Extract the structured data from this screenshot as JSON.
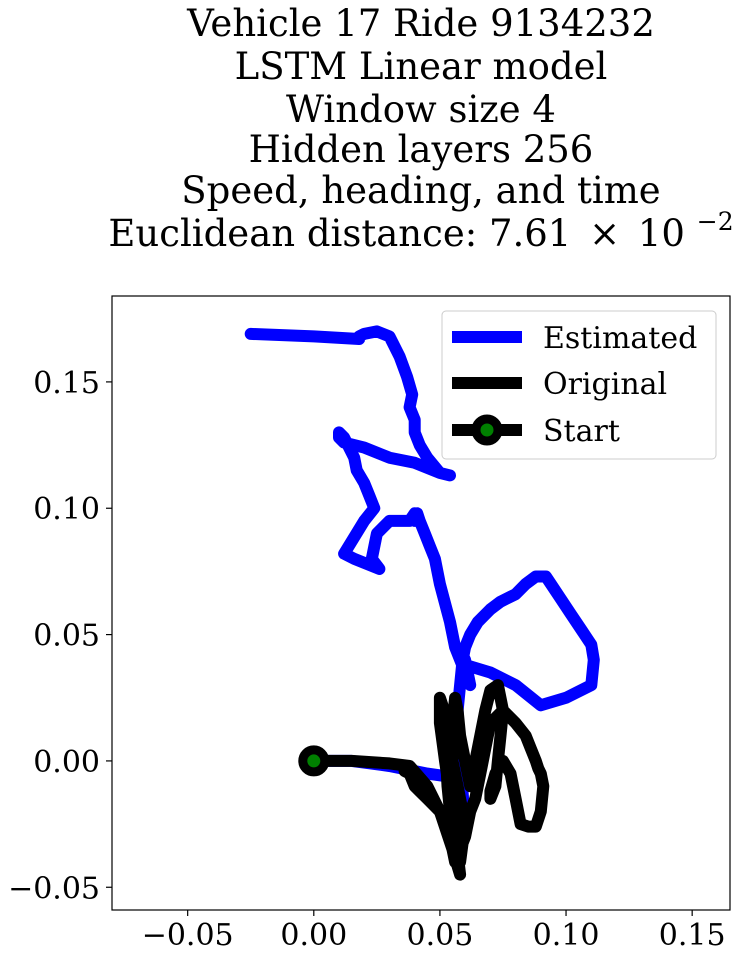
{
  "chart_data": {
    "type": "line",
    "title_lines": [
      "Vehicle 17 Ride 9134232",
      "LSTM Linear model",
      "Window size 4",
      "Hidden layers 256",
      "Speed, heading, and time"
    ],
    "title_metric_label": "Euclidean distance: 7.61",
    "title_metric_times": "×",
    "title_metric_base": "10",
    "title_metric_exponent": "−2",
    "xlabel": "",
    "ylabel": "",
    "xlim": [
      -0.08,
      0.165
    ],
    "ylim": [
      -0.059,
      0.184
    ],
    "xticks": [
      -0.05,
      0.0,
      0.05,
      0.1,
      0.15
    ],
    "xtick_labels": [
      "−0.05",
      "0.00",
      "0.05",
      "0.10",
      "0.15"
    ],
    "yticks": [
      -0.05,
      0.0,
      0.05,
      0.1,
      0.15
    ],
    "ytick_labels": [
      "−0.05",
      "0.00",
      "0.05",
      "0.10",
      "0.15"
    ],
    "grid": false,
    "legend_position": "top-right",
    "legend": [
      "Estimated",
      "Original",
      "Start"
    ],
    "series": [
      {
        "name": "Estimated",
        "color": "#0000ff",
        "x": [
          0.0,
          0.015,
          0.03,
          0.045,
          0.052,
          0.056,
          0.058,
          0.06,
          0.058,
          0.057,
          0.058,
          0.059,
          0.06,
          0.062,
          0.065,
          0.07,
          0.074,
          0.08,
          0.084,
          0.088,
          0.092,
          0.094,
          0.098,
          0.102,
          0.106,
          0.11,
          0.111,
          0.11,
          0.1,
          0.09,
          0.08,
          0.07,
          0.06,
          0.058,
          0.06,
          0.062,
          0.056,
          0.054,
          0.05,
          0.048,
          0.046,
          0.044,
          0.042,
          0.041,
          0.04,
          0.04,
          0.038,
          0.03,
          0.025,
          0.023,
          0.026,
          0.016,
          0.012,
          0.02,
          0.024,
          0.022,
          0.02,
          0.017,
          0.016,
          0.014,
          0.012,
          0.01,
          0.01,
          0.012,
          0.02,
          0.03,
          0.04,
          0.05,
          0.054,
          0.05,
          0.045,
          0.042,
          0.04,
          0.04,
          0.038,
          0.039,
          0.037,
          0.034,
          0.03,
          0.025,
          0.02,
          0.018,
          0.018,
          0.0,
          -0.025
        ],
        "y": [
          0.0,
          0.0,
          -0.002,
          -0.005,
          -0.006,
          -0.01,
          -0.02,
          -0.025,
          0.0,
          0.02,
          0.03,
          0.04,
          0.045,
          0.05,
          0.055,
          0.06,
          0.063,
          0.066,
          0.07,
          0.073,
          0.073,
          0.07,
          0.064,
          0.058,
          0.052,
          0.046,
          0.04,
          0.03,
          0.025,
          0.022,
          0.03,
          0.035,
          0.038,
          0.044,
          0.04,
          0.03,
          0.045,
          0.055,
          0.07,
          0.08,
          0.085,
          0.09,
          0.095,
          0.098,
          0.095,
          0.098,
          0.095,
          0.095,
          0.09,
          0.08,
          0.076,
          0.08,
          0.082,
          0.095,
          0.1,
          0.105,
          0.11,
          0.115,
          0.12,
          0.124,
          0.128,
          0.13,
          0.128,
          0.126,
          0.124,
          0.12,
          0.118,
          0.114,
          0.113,
          0.114,
          0.12,
          0.125,
          0.13,
          0.135,
          0.14,
          0.145,
          0.152,
          0.16,
          0.168,
          0.17,
          0.169,
          0.168,
          0.167,
          0.168,
          0.169
        ]
      },
      {
        "name": "Original",
        "color": "#000000",
        "x": [
          0.0,
          0.015,
          0.03,
          0.038,
          0.045,
          0.05,
          0.055,
          0.058,
          0.055,
          0.052,
          0.05,
          0.05,
          0.051,
          0.052,
          0.053,
          0.055,
          0.058,
          0.06,
          0.057,
          0.055,
          0.055,
          0.056,
          0.057,
          0.058,
          0.06,
          0.062,
          0.065,
          0.068,
          0.07,
          0.073,
          0.075,
          0.074,
          0.073,
          0.072,
          0.07,
          0.07,
          0.072,
          0.075,
          0.078,
          0.08,
          0.082,
          0.085,
          0.088,
          0.09,
          0.091,
          0.09,
          0.089,
          0.088,
          0.086,
          0.084,
          0.08,
          0.075,
          0.07,
          0.068,
          0.066,
          0.064,
          0.062,
          0.06,
          0.058,
          0.056,
          0.055,
          0.054,
          0.052,
          0.05,
          0.048,
          0.045,
          0.042,
          0.04,
          0.038,
          0.036
        ],
        "y": [
          0.0,
          0.0,
          -0.001,
          -0.002,
          -0.01,
          -0.02,
          -0.035,
          -0.045,
          -0.02,
          0.0,
          0.015,
          0.025,
          0.022,
          0.01,
          -0.01,
          -0.03,
          -0.04,
          -0.025,
          -0.01,
          0.0,
          0.015,
          0.025,
          0.02,
          0.01,
          0.0,
          -0.01,
          0.005,
          0.02,
          0.028,
          0.03,
          0.02,
          0.01,
          0.0,
          -0.01,
          -0.015,
          -0.012,
          -0.005,
          0.0,
          -0.005,
          -0.015,
          -0.025,
          -0.026,
          -0.026,
          -0.02,
          -0.01,
          -0.005,
          -0.003,
          0.0,
          0.005,
          0.01,
          0.015,
          0.02,
          0.015,
          0.005,
          -0.005,
          -0.015,
          -0.02,
          -0.03,
          -0.035,
          -0.04,
          -0.035,
          -0.03,
          -0.025,
          -0.02,
          -0.018,
          -0.015,
          -0.012,
          -0.01,
          -0.005,
          -0.004
        ]
      }
    ],
    "start_point": {
      "x": 0.0,
      "y": 0.0,
      "marker_color": "#008000",
      "edge_color": "#000000"
    }
  }
}
